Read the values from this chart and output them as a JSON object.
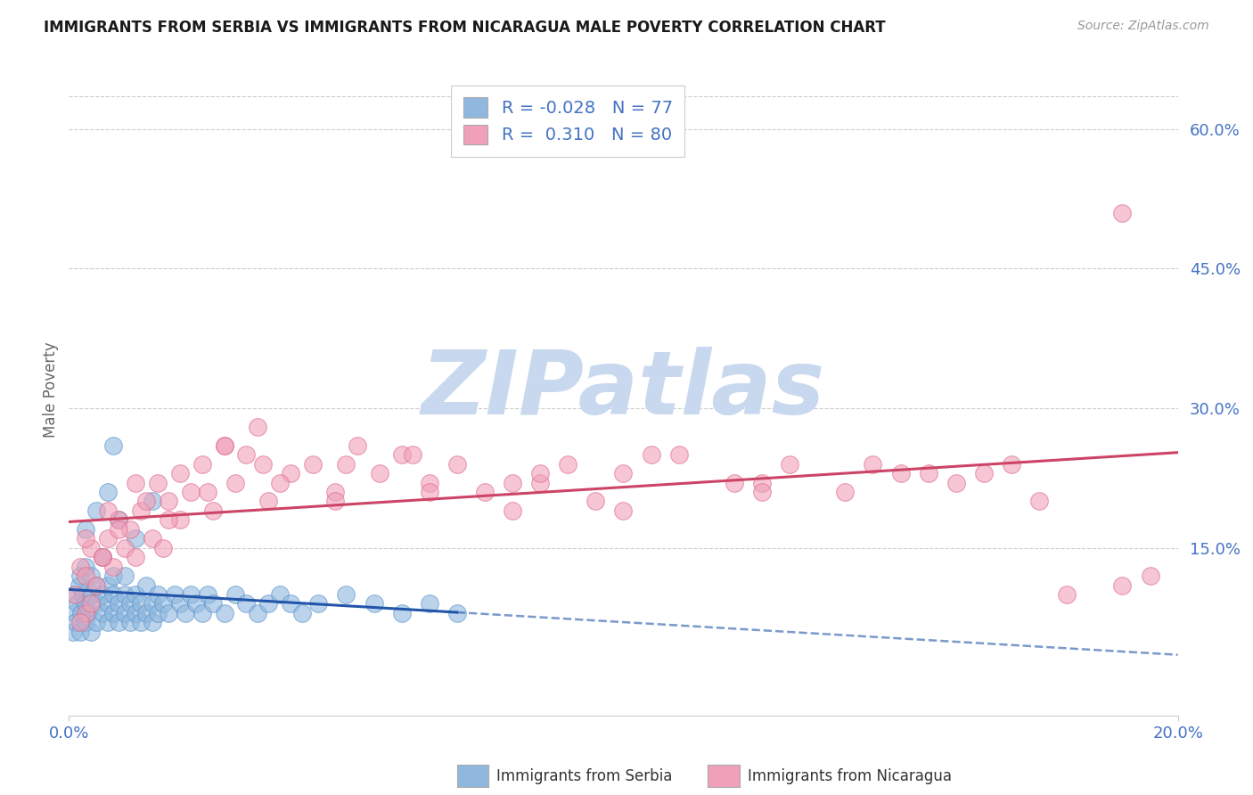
{
  "title": "IMMIGRANTS FROM SERBIA VS IMMIGRANTS FROM NICARAGUA MALE POVERTY CORRELATION CHART",
  "source": "Source: ZipAtlas.com",
  "ylabel": "Male Poverty",
  "xlim": [
    0.0,
    0.2
  ],
  "ylim": [
    -0.03,
    0.67
  ],
  "serbia_R": -0.028,
  "serbia_N": 77,
  "nicaragua_R": 0.31,
  "nicaragua_N": 80,
  "serbia_color": "#90b8de",
  "serbia_edge_color": "#5590cc",
  "nicaragua_color": "#f0a0b8",
  "nicaragua_edge_color": "#dd6688",
  "serbia_line_color": "#2255aa",
  "nicaragua_line_color": "#cc4466",
  "label_serbia": "Immigrants from Serbia",
  "label_nicaragua": "Immigrants from Nicaragua",
  "title_color": "#1a1a1a",
  "axis_color": "#4472c4",
  "legend_text_color": "#4472c4",
  "legend_label_color": "#333333",
  "grid_color": "#cccccc",
  "background_color": "#ffffff",
  "watermark_text": "ZIPatlas",
  "watermark_color": "#c8d8ee",
  "ytick_vals": [
    0.0,
    0.15,
    0.3,
    0.45,
    0.6
  ],
  "ytick_labels": [
    "",
    "15.0%",
    "30.0%",
    "45.0%",
    "60.0%"
  ],
  "xtick_vals": [
    0.0,
    0.2
  ],
  "xtick_labels": [
    "0.0%",
    "20.0%"
  ],
  "serbia_scatter_x": [
    0.0008,
    0.001,
    0.001,
    0.0012,
    0.0015,
    0.0018,
    0.002,
    0.002,
    0.0022,
    0.0025,
    0.003,
    0.003,
    0.003,
    0.0035,
    0.004,
    0.004,
    0.004,
    0.005,
    0.005,
    0.005,
    0.006,
    0.006,
    0.006,
    0.007,
    0.007,
    0.007,
    0.008,
    0.008,
    0.008,
    0.009,
    0.009,
    0.01,
    0.01,
    0.01,
    0.011,
    0.011,
    0.012,
    0.012,
    0.013,
    0.013,
    0.014,
    0.014,
    0.015,
    0.015,
    0.016,
    0.016,
    0.017,
    0.018,
    0.019,
    0.02,
    0.021,
    0.022,
    0.023,
    0.024,
    0.025,
    0.026,
    0.028,
    0.03,
    0.032,
    0.034,
    0.036,
    0.038,
    0.04,
    0.042,
    0.045,
    0.05,
    0.055,
    0.06,
    0.065,
    0.07,
    0.008,
    0.003,
    0.005,
    0.007,
    0.009,
    0.012,
    0.015
  ],
  "serbia_scatter_y": [
    0.06,
    0.08,
    0.1,
    0.07,
    0.09,
    0.11,
    0.06,
    0.12,
    0.08,
    0.1,
    0.07,
    0.09,
    0.13,
    0.08,
    0.1,
    0.06,
    0.12,
    0.07,
    0.09,
    0.11,
    0.08,
    0.1,
    0.14,
    0.07,
    0.09,
    0.11,
    0.08,
    0.1,
    0.12,
    0.07,
    0.09,
    0.08,
    0.1,
    0.12,
    0.07,
    0.09,
    0.08,
    0.1,
    0.07,
    0.09,
    0.08,
    0.11,
    0.07,
    0.09,
    0.08,
    0.1,
    0.09,
    0.08,
    0.1,
    0.09,
    0.08,
    0.1,
    0.09,
    0.08,
    0.1,
    0.09,
    0.08,
    0.1,
    0.09,
    0.08,
    0.09,
    0.1,
    0.09,
    0.08,
    0.09,
    0.1,
    0.09,
    0.08,
    0.09,
    0.08,
    0.26,
    0.17,
    0.19,
    0.21,
    0.18,
    0.16,
    0.2
  ],
  "nicaragua_scatter_x": [
    0.001,
    0.002,
    0.003,
    0.004,
    0.005,
    0.006,
    0.007,
    0.008,
    0.009,
    0.01,
    0.011,
    0.012,
    0.013,
    0.015,
    0.016,
    0.017,
    0.018,
    0.02,
    0.022,
    0.024,
    0.026,
    0.028,
    0.03,
    0.032,
    0.034,
    0.036,
    0.04,
    0.044,
    0.048,
    0.052,
    0.056,
    0.06,
    0.065,
    0.07,
    0.075,
    0.08,
    0.085,
    0.09,
    0.095,
    0.1,
    0.11,
    0.12,
    0.13,
    0.14,
    0.15,
    0.16,
    0.17,
    0.18,
    0.19,
    0.195,
    0.003,
    0.006,
    0.009,
    0.014,
    0.02,
    0.028,
    0.038,
    0.05,
    0.065,
    0.085,
    0.105,
    0.125,
    0.145,
    0.165,
    0.003,
    0.007,
    0.012,
    0.018,
    0.025,
    0.035,
    0.048,
    0.062,
    0.08,
    0.1,
    0.125,
    0.155,
    0.175,
    0.002,
    0.004,
    0.19
  ],
  "nicaragua_scatter_y": [
    0.1,
    0.13,
    0.12,
    0.15,
    0.11,
    0.14,
    0.16,
    0.13,
    0.18,
    0.15,
    0.17,
    0.14,
    0.19,
    0.16,
    0.22,
    0.15,
    0.2,
    0.18,
    0.21,
    0.24,
    0.19,
    0.26,
    0.22,
    0.25,
    0.28,
    0.2,
    0.23,
    0.24,
    0.21,
    0.26,
    0.23,
    0.25,
    0.22,
    0.24,
    0.21,
    0.19,
    0.22,
    0.24,
    0.2,
    0.23,
    0.25,
    0.22,
    0.24,
    0.21,
    0.23,
    0.22,
    0.24,
    0.1,
    0.11,
    0.12,
    0.08,
    0.14,
    0.17,
    0.2,
    0.23,
    0.26,
    0.22,
    0.24,
    0.21,
    0.23,
    0.25,
    0.22,
    0.24,
    0.23,
    0.16,
    0.19,
    0.22,
    0.18,
    0.21,
    0.24,
    0.2,
    0.25,
    0.22,
    0.19,
    0.21,
    0.23,
    0.2,
    0.07,
    0.09,
    0.51
  ]
}
